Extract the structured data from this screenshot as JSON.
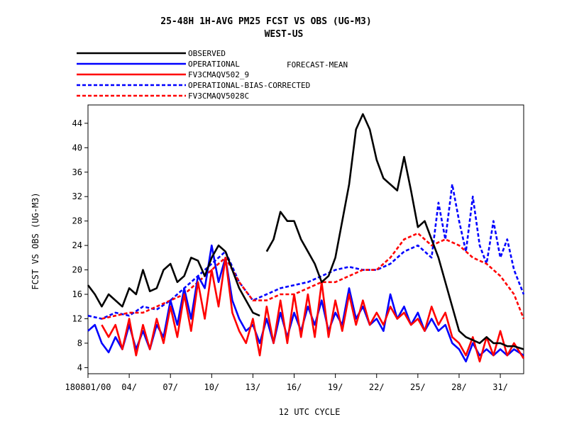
{
  "title_line1": "25-48H    1H-AVG PM25 FCST VS OBS (UG-M3)",
  "title_line2": "WEST-US",
  "forecast_label": "FORECAST-MEAN",
  "chart_data": {
    "type": "line",
    "xlabel": "12 UTC CYCLE",
    "ylabel": "FCST VS OBS (UG-M3)",
    "x_range_days": [
      0,
      31.7
    ],
    "ylim": [
      3,
      47
    ],
    "y_ticks": [
      4,
      8,
      12,
      16,
      20,
      24,
      28,
      32,
      36,
      40,
      44
    ],
    "x_ticks": [
      {
        "x": 0,
        "label": "180801/00"
      },
      {
        "x": 3,
        "label": "04/"
      },
      {
        "x": 6,
        "label": "07/"
      },
      {
        "x": 9,
        "label": "10/"
      },
      {
        "x": 12,
        "label": "13/"
      },
      {
        "x": 15,
        "label": "16/"
      },
      {
        "x": 18,
        "label": "19/"
      },
      {
        "x": 21,
        "label": "22/"
      },
      {
        "x": 24,
        "label": "25/"
      },
      {
        "x": 27,
        "label": "28/"
      },
      {
        "x": 30,
        "label": "31/"
      }
    ],
    "grid": false,
    "legend_position": "top-left, above plot",
    "series": [
      {
        "name": "OBSERVED",
        "color": "#000000",
        "dash": "solid",
        "segments": [
          [
            [
              0,
              17.5
            ],
            [
              0.5,
              16
            ],
            [
              1,
              14
            ],
            [
              1.5,
              16
            ],
            [
              2,
              15
            ],
            [
              2.5,
              14
            ],
            [
              3,
              17
            ],
            [
              3.5,
              16
            ],
            [
              4,
              20
            ],
            [
              4.5,
              16.5
            ],
            [
              5,
              17
            ],
            [
              5.5,
              20
            ],
            [
              6,
              21
            ],
            [
              6.5,
              18
            ],
            [
              7,
              19
            ],
            [
              7.5,
              22
            ],
            [
              8,
              21.5
            ],
            [
              8.5,
              19
            ],
            [
              9,
              22
            ],
            [
              9.5,
              24
            ],
            [
              10,
              23
            ],
            [
              10.5,
              20
            ],
            [
              11,
              17
            ],
            [
              11.5,
              15
            ],
            [
              12,
              13
            ],
            [
              12.5,
              12.5
            ]
          ],
          [
            [
              13,
              23
            ],
            [
              13.5,
              25
            ],
            [
              14,
              29.5
            ],
            [
              14.5,
              28
            ],
            [
              15,
              28
            ],
            [
              15.5,
              25
            ],
            [
              16,
              23
            ],
            [
              16.5,
              21
            ],
            [
              17,
              18
            ],
            [
              17.5,
              19
            ],
            [
              18,
              22
            ],
            [
              18.5,
              28
            ],
            [
              19,
              34
            ],
            [
              19.5,
              43
            ],
            [
              20,
              45.5
            ],
            [
              20.5,
              43
            ],
            [
              21,
              38
            ],
            [
              21.5,
              35
            ],
            [
              22,
              34
            ],
            [
              22.5,
              33
            ],
            [
              23,
              38.5
            ],
            [
              23.5,
              33
            ],
            [
              24,
              27
            ],
            [
              24.5,
              28
            ],
            [
              25,
              25
            ],
            [
              25.5,
              22
            ],
            [
              26,
              18
            ],
            [
              26.5,
              14
            ],
            [
              27,
              10
            ],
            [
              27.5,
              9
            ],
            [
              28,
              8.5
            ],
            [
              28.5,
              8
            ],
            [
              29,
              9
            ],
            [
              29.5,
              8
            ],
            [
              30,
              8
            ],
            [
              30.5,
              7.5
            ],
            [
              31,
              7.5
            ],
            [
              31.7,
              7
            ]
          ]
        ]
      },
      {
        "name": "OPERATIONAL",
        "color": "#0000ff",
        "dash": "solid",
        "segments": [
          [
            [
              0,
              10
            ],
            [
              0.5,
              11
            ],
            [
              1,
              8
            ],
            [
              1.5,
              6.5
            ],
            [
              2,
              9
            ],
            [
              2.5,
              7
            ],
            [
              3,
              11
            ],
            [
              3.5,
              7
            ],
            [
              4,
              10
            ],
            [
              4.5,
              7
            ],
            [
              5,
              11
            ],
            [
              5.5,
              9
            ],
            [
              6,
              15
            ],
            [
              6.5,
              11
            ],
            [
              7,
              17
            ],
            [
              7.5,
              12
            ],
            [
              8,
              19
            ],
            [
              8.5,
              17
            ],
            [
              9,
              24
            ],
            [
              9.5,
              18
            ],
            [
              10,
              22
            ],
            [
              10.5,
              15
            ],
            [
              11,
              12
            ],
            [
              11.5,
              10
            ],
            [
              12,
              11
            ],
            [
              12.5,
              8
            ],
            [
              13,
              12
            ],
            [
              13.5,
              8
            ],
            [
              14,
              13
            ],
            [
              14.5,
              9
            ],
            [
              15,
              13
            ],
            [
              15.5,
              10
            ],
            [
              16,
              14
            ],
            [
              16.5,
              11
            ],
            [
              17,
              15
            ],
            [
              17.5,
              10
            ],
            [
              18,
              13
            ],
            [
              18.5,
              11
            ],
            [
              19,
              17
            ],
            [
              19.5,
              12
            ],
            [
              20,
              14
            ],
            [
              20.5,
              11
            ],
            [
              21,
              12
            ],
            [
              21.5,
              10
            ],
            [
              22,
              16
            ],
            [
              22.5,
              12
            ],
            [
              23,
              14
            ],
            [
              23.5,
              11
            ],
            [
              24,
              13
            ],
            [
              24.5,
              10
            ],
            [
              25,
              12
            ],
            [
              25.5,
              10
            ],
            [
              26,
              11
            ],
            [
              26.5,
              8
            ],
            [
              27,
              7
            ],
            [
              27.5,
              5
            ],
            [
              28,
              8
            ],
            [
              28.5,
              6
            ],
            [
              29,
              7
            ],
            [
              29.5,
              6
            ],
            [
              30,
              7
            ],
            [
              30.5,
              6
            ],
            [
              31,
              7
            ],
            [
              31.7,
              6
            ]
          ]
        ]
      },
      {
        "name": "FV3CMAQV502_9",
        "color": "#ff0000",
        "dash": "solid",
        "segments": [
          [
            [
              1,
              11
            ],
            [
              1.5,
              9
            ],
            [
              2,
              11
            ],
            [
              2.5,
              7
            ],
            [
              3,
              12
            ],
            [
              3.5,
              6
            ],
            [
              4,
              11
            ],
            [
              4.5,
              7
            ],
            [
              5,
              12
            ],
            [
              5.5,
              8
            ],
            [
              6,
              14
            ],
            [
              6.5,
              9
            ],
            [
              7,
              16
            ],
            [
              7.5,
              10
            ],
            [
              8,
              18
            ],
            [
              8.5,
              12
            ],
            [
              9,
              20
            ],
            [
              9.5,
              14
            ],
            [
              10,
              22
            ],
            [
              10.5,
              13
            ],
            [
              11,
              10
            ],
            [
              11.5,
              8
            ],
            [
              12,
              12
            ],
            [
              12.5,
              6
            ],
            [
              13,
              14
            ],
            [
              13.5,
              8
            ],
            [
              14,
              15
            ],
            [
              14.5,
              8
            ],
            [
              15,
              16
            ],
            [
              15.5,
              9
            ],
            [
              16,
              16
            ],
            [
              16.5,
              9
            ],
            [
              17,
              18
            ],
            [
              17.5,
              9
            ],
            [
              18,
              15
            ],
            [
              18.5,
              10
            ],
            [
              19,
              16
            ],
            [
              19.5,
              11
            ],
            [
              20,
              15
            ],
            [
              20.5,
              11
            ],
            [
              21,
              13
            ],
            [
              21.5,
              11
            ],
            [
              22,
              14
            ],
            [
              22.5,
              12
            ],
            [
              23,
              13
            ],
            [
              23.5,
              11
            ],
            [
              24,
              12
            ],
            [
              24.5,
              10
            ],
            [
              25,
              14
            ],
            [
              25.5,
              11
            ],
            [
              26,
              13
            ],
            [
              26.5,
              9
            ],
            [
              27,
              8
            ],
            [
              27.5,
              6
            ],
            [
              28,
              9
            ],
            [
              28.5,
              5
            ],
            [
              29,
              9
            ],
            [
              29.5,
              6
            ],
            [
              30,
              10
            ],
            [
              30.5,
              6
            ],
            [
              31,
              8
            ],
            [
              31.7,
              5.5
            ]
          ]
        ]
      },
      {
        "name": "OPERATIONAL-BIAS-CORRECTED",
        "color": "#0000ff",
        "dash": "dashed",
        "segments": [
          [
            [
              0,
              12.5
            ],
            [
              1,
              12
            ],
            [
              2,
              13
            ],
            [
              3,
              12.5
            ],
            [
              4,
              14
            ],
            [
              5,
              13.5
            ],
            [
              6,
              15
            ],
            [
              7,
              17
            ],
            [
              8,
              19
            ],
            [
              9,
              21
            ],
            [
              10,
              23
            ],
            [
              11,
              18
            ],
            [
              12,
              15
            ],
            [
              13,
              16
            ],
            [
              14,
              17
            ],
            [
              15,
              17.5
            ],
            [
              16,
              18
            ],
            [
              17,
              19
            ],
            [
              18,
              20
            ],
            [
              19,
              20.5
            ],
            [
              20,
              20
            ],
            [
              21,
              20
            ],
            [
              22,
              21
            ],
            [
              23,
              23
            ],
            [
              24,
              24
            ],
            [
              25,
              22
            ],
            [
              25.5,
              31
            ],
            [
              26,
              25
            ],
            [
              26.5,
              34
            ],
            [
              27,
              28
            ],
            [
              27.5,
              23
            ],
            [
              28,
              32
            ],
            [
              28.5,
              24
            ],
            [
              29,
              21
            ],
            [
              29.5,
              28
            ],
            [
              30,
              22
            ],
            [
              30.5,
              25
            ],
            [
              31,
              20
            ],
            [
              31.7,
              16
            ]
          ]
        ]
      },
      {
        "name": "FV3CMAQV5028C",
        "color": "#ff0000",
        "dash": "dashed",
        "segments": [
          [
            [
              1,
              12
            ],
            [
              2,
              12.5
            ],
            [
              3,
              13
            ],
            [
              4,
              13
            ],
            [
              5,
              14
            ],
            [
              6,
              15
            ],
            [
              7,
              16
            ],
            [
              8,
              18
            ],
            [
              9,
              20
            ],
            [
              10,
              22
            ],
            [
              11,
              18
            ],
            [
              12,
              15
            ],
            [
              13,
              15
            ],
            [
              14,
              16
            ],
            [
              15,
              16
            ],
            [
              16,
              17
            ],
            [
              17,
              18
            ],
            [
              18,
              18
            ],
            [
              19,
              19
            ],
            [
              20,
              20
            ],
            [
              21,
              20
            ],
            [
              22,
              22
            ],
            [
              23,
              25
            ],
            [
              24,
              26
            ],
            [
              25,
              24
            ],
            [
              26,
              25
            ],
            [
              27,
              24
            ],
            [
              28,
              22
            ],
            [
              29,
              21
            ],
            [
              30,
              19
            ],
            [
              31,
              16
            ],
            [
              31.7,
              12
            ]
          ]
        ]
      }
    ]
  }
}
